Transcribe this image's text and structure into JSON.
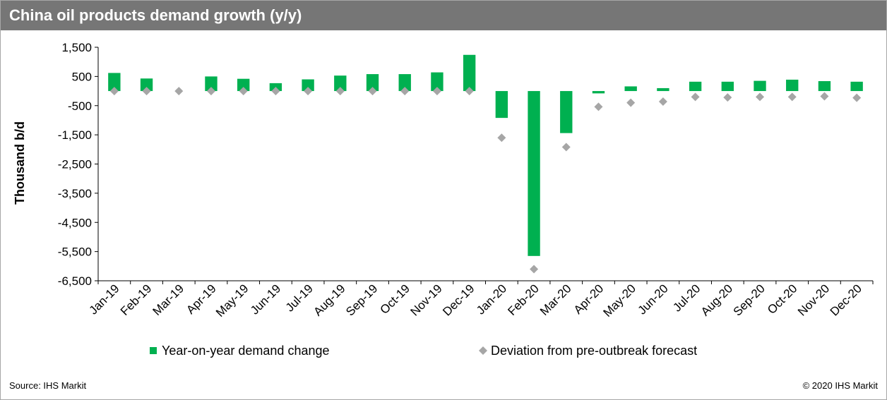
{
  "title": "China oil products demand growth (y/y)",
  "source": "Source: IHS Markit",
  "copyright": "© 2020 IHS Markit",
  "chart_data": {
    "type": "bar",
    "title": "China oil products demand growth (y/y)",
    "xlabel": "",
    "ylabel": "Thousand b/d",
    "ylim": [
      -6500,
      1500
    ],
    "yticks": [
      1500,
      500,
      -500,
      -1500,
      -2500,
      -3500,
      -4500,
      -5500,
      -6500
    ],
    "ytick_labels": [
      "1,500",
      "500",
      "-500",
      "-1,500",
      "-2,500",
      "-3,500",
      "-4,500",
      "-5,500",
      "-6,500"
    ],
    "grid": false,
    "legend_position": "bottom",
    "categories": [
      "Jan-19",
      "Feb-19",
      "Mar-19",
      "Apr-19",
      "May-19",
      "Jun-19",
      "Jul-19",
      "Aug-19",
      "Sep-19",
      "Oct-19",
      "Nov-19",
      "Dec-19",
      "Jan-20",
      "Feb-20",
      "Mar-20",
      "Apr-20",
      "May-20",
      "Jun-20",
      "Jul-20",
      "Aug-20",
      "Sep-20",
      "Oct-20",
      "Nov-20",
      "Dec-20"
    ],
    "series": [
      {
        "name": "Year-on-year demand change",
        "kind": "bar",
        "color": "#00b050",
        "values": [
          620,
          430,
          0,
          500,
          420,
          270,
          400,
          530,
          580,
          580,
          640,
          1240,
          -920,
          -5650,
          -1440,
          -80,
          160,
          100,
          320,
          320,
          350,
          390,
          340,
          320
        ]
      },
      {
        "name": "Deviation from pre-outbreak forecast",
        "kind": "marker",
        "color": "#a6a6a6",
        "values": [
          0,
          0,
          0,
          0,
          0,
          0,
          0,
          0,
          0,
          0,
          0,
          0,
          -1600,
          -6100,
          -1920,
          -540,
          -400,
          -360,
          -200,
          -220,
          -200,
          -200,
          -180,
          -230
        ]
      }
    ]
  }
}
